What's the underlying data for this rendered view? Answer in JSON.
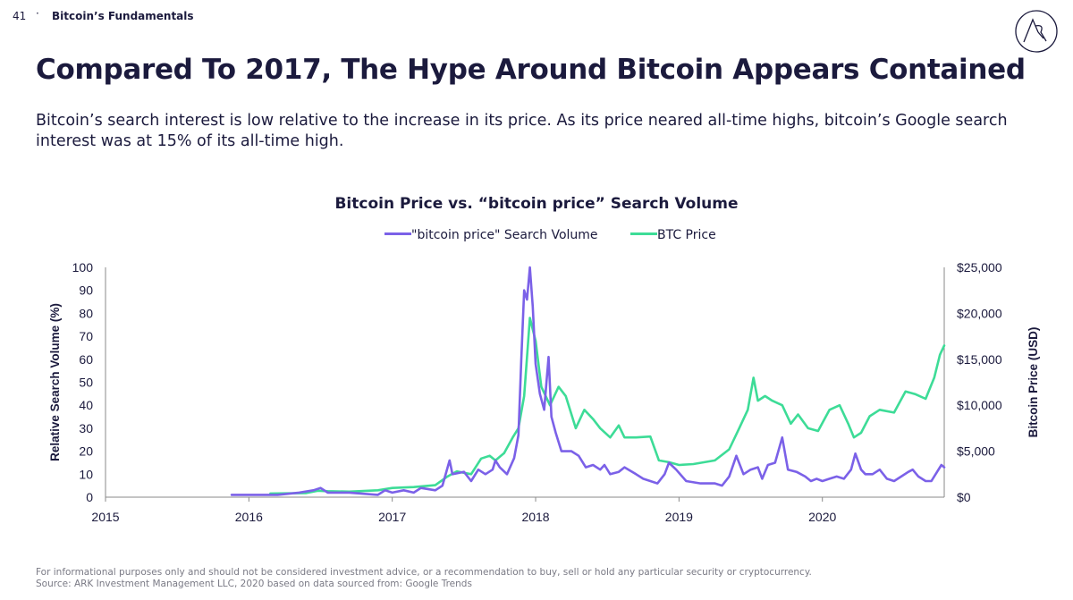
{
  "header": {
    "page_number": "41",
    "separator": "·",
    "section": "Bitcoin’s Fundamentals",
    "logo_text": "ARK"
  },
  "slide": {
    "title": "Compared To 2017, The Hype Around Bitcoin Appears Contained",
    "subtitle": "Bitcoin’s search interest is low relative to the increase in its price. As its price neared all-time highs, bitcoin’s Google search interest was at 15% of its all-time high."
  },
  "colors": {
    "search": "#7b61e8",
    "price": "#3ddc97",
    "text": "#1b1a3d",
    "axis": "#8a8a8a"
  },
  "footer": {
    "disclaimer": "For informational purposes only and should not be considered investment advice, or a recommendation to buy, sell or hold any particular security or cryptocurrency.",
    "source": "Source: ARK Investment Management LLC, 2020 based on data sourced from: Google Trends"
  },
  "chart_data": {
    "type": "line",
    "title": "Bitcoin Price vs. “bitcoin price” Search Volume",
    "xlabel": "",
    "ylabel": "Relative Search Volume (%)",
    "y2label": "Bitcoin Price (USD)",
    "xlim": [
      2015,
      2020.85
    ],
    "ylim": [
      0,
      100
    ],
    "y2lim": [
      0,
      25000
    ],
    "x_ticks": [
      "2015",
      "2016",
      "2017",
      "2018",
      "2019",
      "2020"
    ],
    "y_ticks": [
      "0",
      "10",
      "20",
      "30",
      "40",
      "50",
      "60",
      "70",
      "80",
      "90",
      "100"
    ],
    "y2_ticks": [
      "$0",
      "$5,000",
      "$10,000",
      "$15,000",
      "$20,000",
      "$25,000"
    ],
    "legend": [
      "\"bitcoin price\" Search Volume",
      "BTC Price"
    ],
    "series": [
      {
        "name": "\"bitcoin price\" Search Volume",
        "axis": "left",
        "points": [
          [
            2015.88,
            1
          ],
          [
            2016.2,
            1
          ],
          [
            2016.35,
            2
          ],
          [
            2016.45,
            3
          ],
          [
            2016.5,
            4
          ],
          [
            2016.55,
            2
          ],
          [
            2016.7,
            2
          ],
          [
            2016.9,
            1
          ],
          [
            2016.95,
            3
          ],
          [
            2017.0,
            2
          ],
          [
            2017.08,
            3
          ],
          [
            2017.15,
            2
          ],
          [
            2017.2,
            4
          ],
          [
            2017.3,
            3
          ],
          [
            2017.35,
            5
          ],
          [
            2017.4,
            16
          ],
          [
            2017.42,
            10
          ],
          [
            2017.5,
            11
          ],
          [
            2017.55,
            7
          ],
          [
            2017.6,
            12
          ],
          [
            2017.65,
            10
          ],
          [
            2017.7,
            12
          ],
          [
            2017.72,
            16
          ],
          [
            2017.75,
            13
          ],
          [
            2017.8,
            10
          ],
          [
            2017.85,
            17
          ],
          [
            2017.88,
            27
          ],
          [
            2017.9,
            60
          ],
          [
            2017.92,
            90
          ],
          [
            2017.94,
            86
          ],
          [
            2017.96,
            100
          ],
          [
            2017.98,
            83
          ],
          [
            2018.0,
            58
          ],
          [
            2018.03,
            45
          ],
          [
            2018.06,
            38
          ],
          [
            2018.09,
            61
          ],
          [
            2018.11,
            35
          ],
          [
            2018.14,
            28
          ],
          [
            2018.18,
            20
          ],
          [
            2018.25,
            20
          ],
          [
            2018.3,
            18
          ],
          [
            2018.35,
            13
          ],
          [
            2018.4,
            14
          ],
          [
            2018.45,
            12
          ],
          [
            2018.48,
            14
          ],
          [
            2018.52,
            10
          ],
          [
            2018.58,
            11
          ],
          [
            2018.62,
            13
          ],
          [
            2018.7,
            10
          ],
          [
            2018.75,
            8
          ],
          [
            2018.8,
            7
          ],
          [
            2018.85,
            6
          ],
          [
            2018.9,
            10
          ],
          [
            2018.93,
            15
          ],
          [
            2018.98,
            12
          ],
          [
            2019.05,
            7
          ],
          [
            2019.15,
            6
          ],
          [
            2019.25,
            6
          ],
          [
            2019.3,
            5
          ],
          [
            2019.35,
            9
          ],
          [
            2019.4,
            18
          ],
          [
            2019.45,
            10
          ],
          [
            2019.5,
            12
          ],
          [
            2019.55,
            13
          ],
          [
            2019.58,
            8
          ],
          [
            2019.62,
            14
          ],
          [
            2019.67,
            15
          ],
          [
            2019.72,
            26
          ],
          [
            2019.76,
            12
          ],
          [
            2019.82,
            11
          ],
          [
            2019.88,
            9
          ],
          [
            2019.92,
            7
          ],
          [
            2019.96,
            8
          ],
          [
            2020.0,
            7
          ],
          [
            2020.05,
            8
          ],
          [
            2020.1,
            9
          ],
          [
            2020.15,
            8
          ],
          [
            2020.2,
            12
          ],
          [
            2020.23,
            19
          ],
          [
            2020.27,
            12
          ],
          [
            2020.3,
            10
          ],
          [
            2020.35,
            10
          ],
          [
            2020.4,
            12
          ],
          [
            2020.45,
            8
          ],
          [
            2020.5,
            7
          ],
          [
            2020.55,
            9
          ],
          [
            2020.6,
            11
          ],
          [
            2020.63,
            12
          ],
          [
            2020.67,
            9
          ],
          [
            2020.72,
            7
          ],
          [
            2020.76,
            7
          ],
          [
            2020.8,
            11
          ],
          [
            2020.83,
            14
          ],
          [
            2020.85,
            13
          ]
        ]
      },
      {
        "name": "BTC Price",
        "axis": "right",
        "points": [
          [
            2016.15,
            400
          ],
          [
            2016.4,
            450
          ],
          [
            2016.48,
            700
          ],
          [
            2016.55,
            650
          ],
          [
            2016.7,
            600
          ],
          [
            2016.9,
            750
          ],
          [
            2017.0,
            1000
          ],
          [
            2017.15,
            1100
          ],
          [
            2017.3,
            1300
          ],
          [
            2017.38,
            2200
          ],
          [
            2017.45,
            2800
          ],
          [
            2017.55,
            2500
          ],
          [
            2017.62,
            4200
          ],
          [
            2017.68,
            4500
          ],
          [
            2017.72,
            4000
          ],
          [
            2017.78,
            4800
          ],
          [
            2017.84,
            6500
          ],
          [
            2017.88,
            7500
          ],
          [
            2017.92,
            11000
          ],
          [
            2017.96,
            19500
          ],
          [
            2018.0,
            17000
          ],
          [
            2018.04,
            12000
          ],
          [
            2018.1,
            10000
          ],
          [
            2018.16,
            12000
          ],
          [
            2018.21,
            11000
          ],
          [
            2018.28,
            7500
          ],
          [
            2018.34,
            9500
          ],
          [
            2018.4,
            8500
          ],
          [
            2018.45,
            7500
          ],
          [
            2018.52,
            6500
          ],
          [
            2018.58,
            7800
          ],
          [
            2018.62,
            6500
          ],
          [
            2018.7,
            6500
          ],
          [
            2018.8,
            6600
          ],
          [
            2018.86,
            4000
          ],
          [
            2018.93,
            3800
          ],
          [
            2019.0,
            3500
          ],
          [
            2019.1,
            3600
          ],
          [
            2019.25,
            4000
          ],
          [
            2019.35,
            5200
          ],
          [
            2019.42,
            7500
          ],
          [
            2019.48,
            9500
          ],
          [
            2019.52,
            13000
          ],
          [
            2019.55,
            10500
          ],
          [
            2019.6,
            11000
          ],
          [
            2019.65,
            10500
          ],
          [
            2019.72,
            10000
          ],
          [
            2019.78,
            8000
          ],
          [
            2019.83,
            9000
          ],
          [
            2019.9,
            7500
          ],
          [
            2019.97,
            7200
          ],
          [
            2020.05,
            9500
          ],
          [
            2020.12,
            10000
          ],
          [
            2020.18,
            8000
          ],
          [
            2020.22,
            6500
          ],
          [
            2020.27,
            7000
          ],
          [
            2020.33,
            8800
          ],
          [
            2020.4,
            9500
          ],
          [
            2020.5,
            9200
          ],
          [
            2020.58,
            11500
          ],
          [
            2020.65,
            11200
          ],
          [
            2020.72,
            10700
          ],
          [
            2020.78,
            13000
          ],
          [
            2020.82,
            15500
          ],
          [
            2020.85,
            16500
          ]
        ]
      }
    ]
  }
}
